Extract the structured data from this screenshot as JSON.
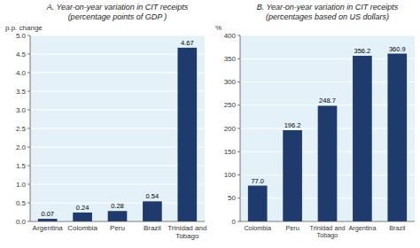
{
  "chart_data": [
    {
      "type": "bar",
      "title": "A. Year-on-year variation in CIT receipts",
      "subtitle": "(percentage points of GDP )",
      "y_label": "p.p. change",
      "categories": [
        "Argentina",
        "Colombia",
        "Peru",
        "Brazil",
        "Trinidad and\nTobago"
      ],
      "values": [
        0.07,
        0.24,
        0.28,
        0.54,
        4.67
      ],
      "color": "#1F3B6E",
      "ylim": [
        0,
        5
      ],
      "yticks": [
        {
          "value": 0,
          "label": "0.0"
        },
        {
          "value": 0.5,
          "label": "0.5"
        },
        {
          "value": 1,
          "label": "1.0"
        },
        {
          "value": 1.5,
          "label": "1.5"
        },
        {
          "value": 2,
          "label": "2.0"
        },
        {
          "value": 2.5,
          "label": "2.5"
        },
        {
          "value": 3,
          "label": "3.0"
        },
        {
          "value": 3.5,
          "label": "3.5"
        },
        {
          "value": 4,
          "label": "4.0"
        },
        {
          "value": 4.5,
          "label": "4.5"
        },
        {
          "value": 5,
          "label": "5.0"
        }
      ],
      "grid": true,
      "data_labels": true
    },
    {
      "type": "bar",
      "title": "B. Year-on-year variation in CIT receipts",
      "subtitle": "(percentages based on US dollars)",
      "y_label": "%",
      "categories": [
        "Colombia",
        "Peru",
        "Trinidad and\nTobago",
        "Argentina",
        "Brazil"
      ],
      "values": [
        77.0,
        196.2,
        248.7,
        356.2,
        360.9
      ],
      "value_labels": [
        "77.0",
        "196.2",
        "248.7",
        "356.2",
        "360.9"
      ],
      "color": "#1F3B6E",
      "ylim": [
        0,
        400
      ],
      "yticks": [
        0,
        50,
        100,
        150,
        200,
        250,
        300,
        350,
        400
      ],
      "grid": true,
      "data_labels": true
    }
  ]
}
